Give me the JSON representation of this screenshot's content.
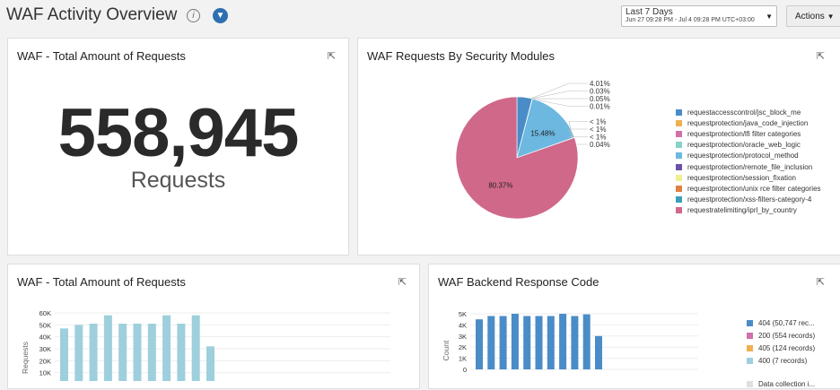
{
  "header": {
    "title": "WAF Activity Overview",
    "info_icon": "i",
    "range_label": "Last 7 Days",
    "range_value": "Jun 27 09:28 PM - Jul 4 09:28 PM UTC+03:00",
    "actions_label": "Actions"
  },
  "panel_total": {
    "title": "WAF - Total Amount of Requests",
    "value": "558,945",
    "unit": "Requests"
  },
  "panel_modules": {
    "title": "WAF Requests By Security Modules",
    "chart_data": {
      "type": "pie",
      "slices": [
        {
          "name": "requestaccesscontrol/jsc_block_me",
          "value": 4.01,
          "label": "4.01%",
          "color": "#4a8cc8"
        },
        {
          "name": "requestprotection/java_code_injection",
          "value": 0.03,
          "label": "0.03%",
          "color": "#f0b050"
        },
        {
          "name": "requestprotection/lfi filter categories",
          "value": 0.05,
          "label": "0.05%",
          "color": "#d070a8"
        },
        {
          "name": "requestprotection/oracle_web_logic",
          "value": 0.01,
          "label": "0.01%",
          "color": "#88d0c8"
        },
        {
          "name": "requestprotection/protocol_method",
          "value": 15.48,
          "label": "15.48%",
          "color": "#6cb8e0"
        },
        {
          "name": "requestprotection/remote_file_inclusion",
          "value": 0.005,
          "label": "< 1%",
          "color": "#6a50a8"
        },
        {
          "name": "requestprotection/session_fixation",
          "value": 0.005,
          "label": "< 1%",
          "color": "#f0f090"
        },
        {
          "name": "requestprotection/unix rce filter categories",
          "value": 0.005,
          "label": "< 1%",
          "color": "#e08040"
        },
        {
          "name": "requestprotection/xss-filters-category-4",
          "value": 0.04,
          "label": "0.04%",
          "color": "#3aa0b8"
        },
        {
          "name": "requestratelimiting/iprl_by_country",
          "value": 80.37,
          "label": "80.37%",
          "color": "#d0688a"
        }
      ]
    }
  },
  "panel_requests": {
    "title": "WAF - Total Amount of Requests",
    "chart_data": {
      "type": "bar",
      "ylabel": "Requests",
      "yticks": [
        "10K",
        "20K",
        "30K",
        "40K",
        "50K",
        "60K"
      ],
      "ylim": [
        0,
        60000
      ],
      "values": [
        47000,
        50000,
        51000,
        58000,
        51000,
        51000,
        51000,
        58000,
        51000,
        58000,
        32000
      ],
      "color": "#9ecfdc"
    }
  },
  "panel_backend": {
    "title": "WAF Backend Response Code",
    "chart_data": {
      "type": "bar",
      "ylabel": "Count",
      "yticks": [
        "0",
        "1K",
        "2K",
        "3K",
        "4K",
        "5K"
      ],
      "ylim": [
        0,
        5000
      ],
      "values": [
        4500,
        4800,
        4800,
        5000,
        4800,
        4800,
        4800,
        5000,
        4800,
        4950,
        3000
      ],
      "color": "#4a8cc8",
      "legend": [
        {
          "label": "404 (50,747 rec...",
          "color": "#4a8cc8"
        },
        {
          "label": "200 (554 records)",
          "color": "#d070a8"
        },
        {
          "label": "405 (124 records)",
          "color": "#f0b050"
        },
        {
          "label": "400 (7 records)",
          "color": "#9ecfdc"
        },
        {
          "label": "Data collection i...",
          "color": "#e0e0e0"
        }
      ]
    }
  }
}
